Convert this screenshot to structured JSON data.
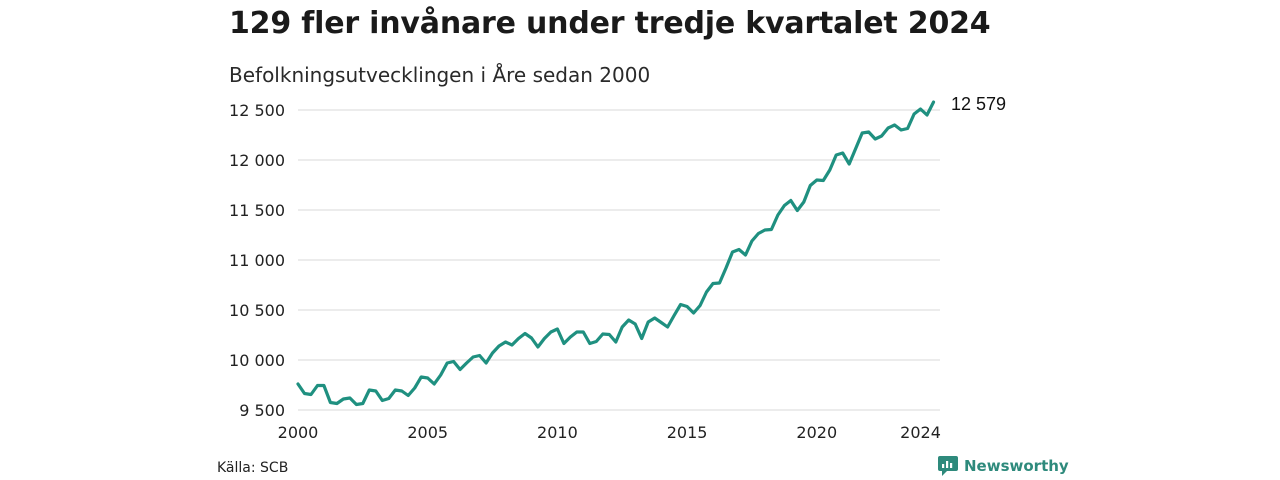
{
  "title": "129 fler invånare under tredje kvartalet 2024",
  "subtitle": "Befolkningsutvecklingen i Åre sedan 2000",
  "source": "Källa: SCB",
  "brand": "Newsworthy",
  "colors": {
    "line": "#1f9080",
    "grid": "#d9d9d9",
    "brand": "#2e8a7c"
  },
  "chart_data": {
    "type": "line",
    "title": "129 fler invånare under tredje kvartalet 2024",
    "subtitle": "Befolkningsutvecklingen i Åre sedan 2000",
    "xlabel": "",
    "ylabel": "",
    "xlim": [
      2000,
      2024.75
    ],
    "ylim": [
      9500,
      12600
    ],
    "yticks": [
      9500,
      10000,
      10500,
      11000,
      11500,
      12000,
      12500
    ],
    "ytick_labels": [
      "9 500",
      "10 000",
      "10 500",
      "11 000",
      "11 500",
      "12 000",
      "12 500"
    ],
    "xticks": [
      2000,
      2005,
      2010,
      2015,
      2020,
      2024
    ],
    "grid": true,
    "end_label": "12 579",
    "series": [
      {
        "x": [
          2000,
          2000.25,
          2000.5,
          2000.75,
          2001,
          2001.25,
          2001.5,
          2001.75,
          2002,
          2002.25,
          2002.5,
          2002.75,
          2003,
          2003.25,
          2003.5,
          2003.75,
          2004,
          2004.25,
          2004.5,
          2004.75,
          2005,
          2005.25,
          2005.5,
          2005.75,
          2006,
          2006.25,
          2006.5,
          2006.75,
          2007,
          2007.25,
          2007.5,
          2007.75,
          2008,
          2008.25,
          2008.5,
          2008.75,
          2009,
          2009.25,
          2009.5,
          2009.75,
          2010,
          2010.25,
          2010.5,
          2010.75,
          2011,
          2011.25,
          2011.5,
          2011.75,
          2012,
          2012.25,
          2012.5,
          2012.75,
          2013,
          2013.25,
          2013.5,
          2013.75,
          2014,
          2014.25,
          2014.5,
          2014.75,
          2015,
          2015.25,
          2015.5,
          2015.75,
          2016,
          2016.25,
          2016.5,
          2016.75,
          2017,
          2017.25,
          2017.5,
          2017.75,
          2018,
          2018.25,
          2018.5,
          2018.75,
          2019,
          2019.25,
          2019.5,
          2019.75,
          2020,
          2020.25,
          2020.5,
          2020.75,
          2021,
          2021.25,
          2021.5,
          2021.75,
          2022,
          2022.25,
          2022.5,
          2022.75,
          2023,
          2023.25,
          2023.5,
          2023.75,
          2024,
          2024.25,
          2024.5
        ],
        "values": [
          9760,
          9665,
          9655,
          9745,
          9745,
          9575,
          9565,
          9610,
          9620,
          9555,
          9565,
          9700,
          9690,
          9595,
          9615,
          9700,
          9690,
          9645,
          9720,
          9830,
          9820,
          9760,
          9850,
          9970,
          9985,
          9905,
          9970,
          10030,
          10045,
          9970,
          10070,
          10140,
          10180,
          10150,
          10215,
          10265,
          10220,
          10130,
          10215,
          10280,
          10310,
          10165,
          10230,
          10280,
          10280,
          10165,
          10185,
          10260,
          10255,
          10180,
          10330,
          10400,
          10360,
          10215,
          10380,
          10420,
          10375,
          10330,
          10445,
          10555,
          10535,
          10470,
          10545,
          10680,
          10765,
          10770,
          10920,
          11080,
          11105,
          11050,
          11190,
          11265,
          11300,
          11305,
          11450,
          11545,
          11595,
          11495,
          11580,
          11745,
          11800,
          11795,
          11900,
          12050,
          12070,
          11960,
          12115,
          12270,
          12280,
          12210,
          12240,
          12320,
          12350,
          12300,
          12315,
          12460,
          12510,
          12450,
          12579
        ]
      }
    ]
  }
}
